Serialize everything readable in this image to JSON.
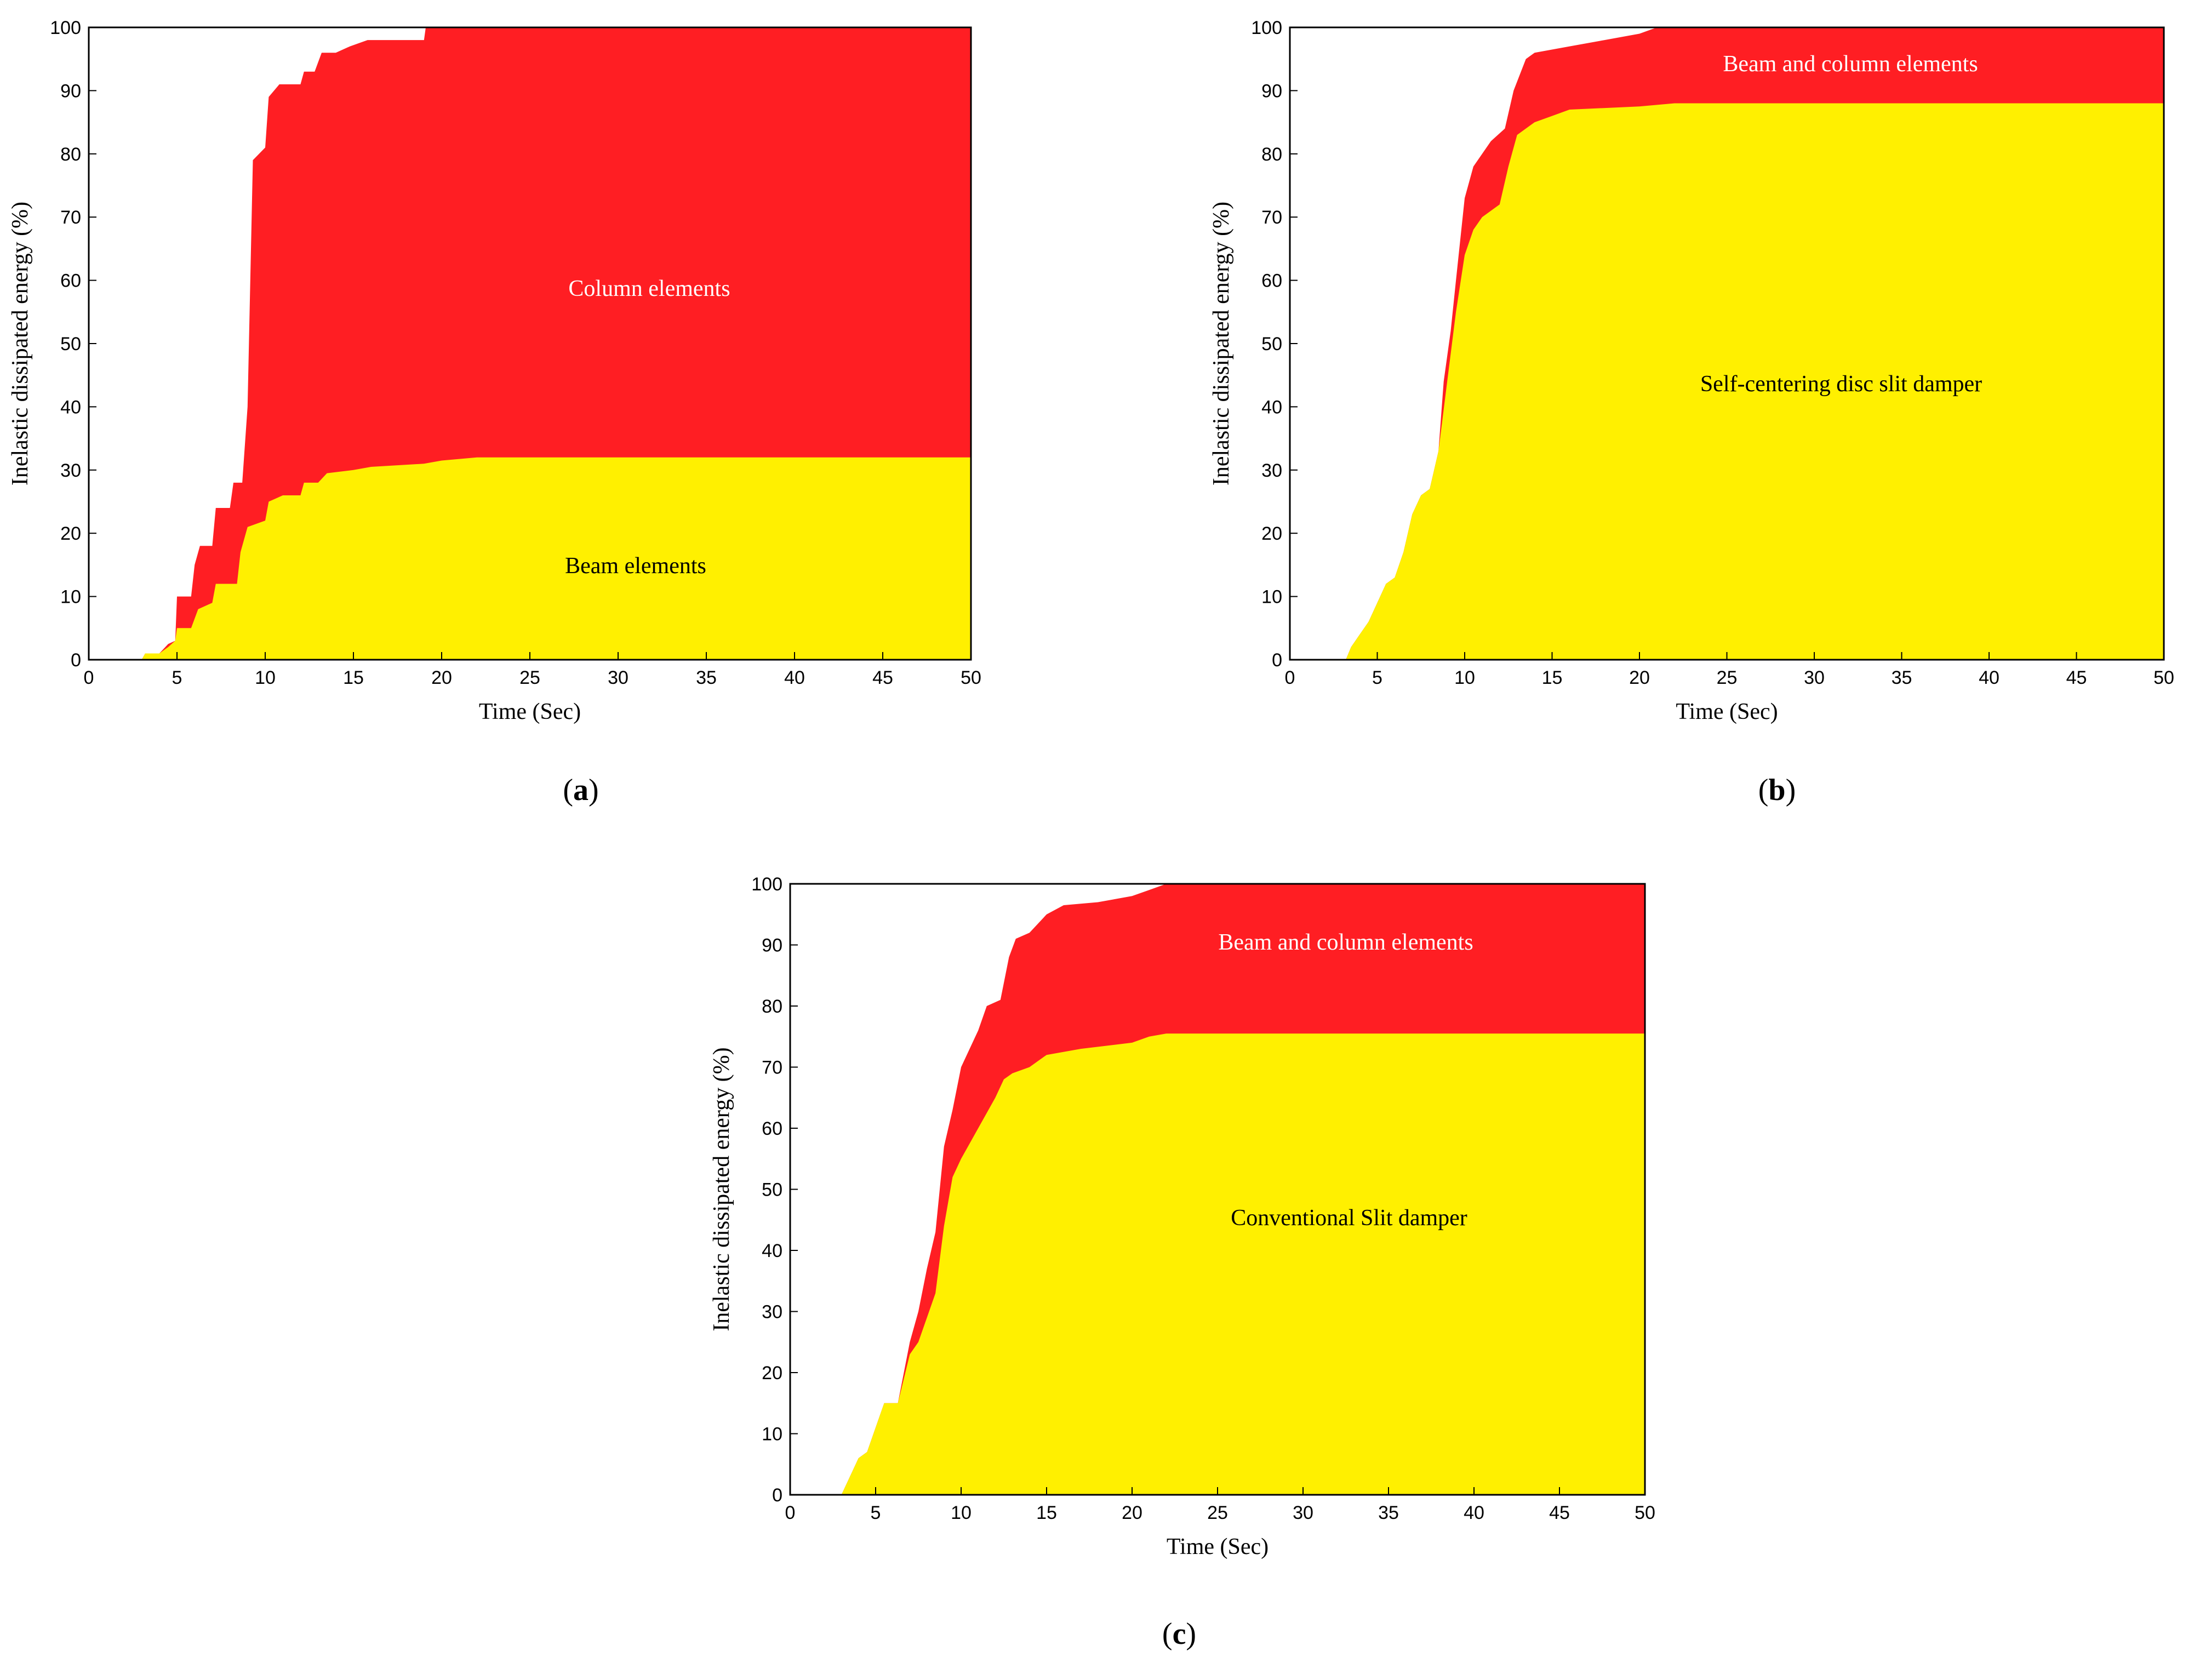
{
  "colors": {
    "red": "#ff1e23",
    "yellow": "#fff000",
    "axis": "#000000",
    "background": "#ffffff"
  },
  "chart_data": [
    {
      "panel": "(a)",
      "type": "area",
      "stacked": true,
      "xlabel": "Time (Sec)",
      "ylabel": "Inelastic dissipated energy (%)",
      "xlim": [
        0,
        50
      ],
      "ylim": [
        0,
        100
      ],
      "xticks": [
        0,
        5,
        10,
        15,
        20,
        25,
        30,
        35,
        40,
        45,
        50
      ],
      "yticks": [
        0,
        10,
        20,
        30,
        40,
        50,
        60,
        70,
        80,
        90,
        100
      ],
      "grid": false,
      "series": [
        {
          "name": "Beam elements",
          "color": "#fff000",
          "points": [
            [
              0,
              0
            ],
            [
              3,
              0
            ],
            [
              3.2,
              1
            ],
            [
              4,
              1
            ],
            [
              4.5,
              2
            ],
            [
              4.9,
              3
            ],
            [
              5,
              5
            ],
            [
              5.8,
              5
            ],
            [
              6.2,
              8
            ],
            [
              7,
              9
            ],
            [
              7.2,
              12
            ],
            [
              8.4,
              12
            ],
            [
              8.6,
              17
            ],
            [
              9,
              21
            ],
            [
              10,
              22
            ],
            [
              10.2,
              25
            ],
            [
              11,
              26
            ],
            [
              12,
              26
            ],
            [
              12.2,
              28
            ],
            [
              13,
              28
            ],
            [
              13.5,
              29.5
            ],
            [
              15,
              30
            ],
            [
              16,
              30.5
            ],
            [
              19,
              31
            ],
            [
              20,
              31.5
            ],
            [
              22,
              32
            ],
            [
              50,
              32
            ]
          ]
        },
        {
          "name": "Column elements",
          "color": "#ff1e23",
          "points": [
            [
              0,
              0
            ],
            [
              3,
              0
            ],
            [
              3.2,
              1
            ],
            [
              4,
              1
            ],
            [
              4.5,
              2.5
            ],
            [
              4.9,
              3
            ],
            [
              5,
              10
            ],
            [
              5.8,
              10
            ],
            [
              6,
              15
            ],
            [
              6.3,
              18
            ],
            [
              7,
              18
            ],
            [
              7.2,
              24
            ],
            [
              8,
              24
            ],
            [
              8.2,
              28
            ],
            [
              8.7,
              28
            ],
            [
              9,
              40
            ],
            [
              9.3,
              79
            ],
            [
              10,
              81
            ],
            [
              10.2,
              89
            ],
            [
              10.8,
              91
            ],
            [
              12,
              91
            ],
            [
              12.2,
              93
            ],
            [
              12.8,
              93
            ],
            [
              13.2,
              96
            ],
            [
              14,
              96
            ],
            [
              14.8,
              97
            ],
            [
              15.8,
              98
            ],
            [
              19,
              98
            ],
            [
              19.1,
              100
            ],
            [
              50,
              100
            ]
          ]
        }
      ]
    },
    {
      "panel": "(b)",
      "type": "area",
      "stacked": true,
      "xlabel": "Time (Sec)",
      "ylabel": "Inelastic dissipated energy (%)",
      "xlim": [
        0,
        50
      ],
      "ylim": [
        0,
        100
      ],
      "xticks": [
        0,
        5,
        10,
        15,
        20,
        25,
        30,
        35,
        40,
        45,
        50
      ],
      "yticks": [
        0,
        10,
        20,
        30,
        40,
        50,
        60,
        70,
        80,
        90,
        100
      ],
      "grid": false,
      "series": [
        {
          "name": "Self-centering disc slit damper",
          "color": "#fff000",
          "points": [
            [
              0,
              0
            ],
            [
              3.2,
              0
            ],
            [
              3.5,
              2
            ],
            [
              4,
              4
            ],
            [
              4.5,
              6
            ],
            [
              5,
              9
            ],
            [
              5.5,
              12
            ],
            [
              6,
              13
            ],
            [
              6.5,
              17
            ],
            [
              7,
              23
            ],
            [
              7.5,
              26
            ],
            [
              8,
              27
            ],
            [
              8.5,
              33
            ],
            [
              9,
              44
            ],
            [
              9.5,
              55
            ],
            [
              10,
              64
            ],
            [
              10.5,
              68
            ],
            [
              11,
              70
            ],
            [
              12,
              72
            ],
            [
              12.5,
              78
            ],
            [
              13,
              83
            ],
            [
              14,
              85
            ],
            [
              15,
              86
            ],
            [
              16,
              87
            ],
            [
              20,
              87.5
            ],
            [
              22,
              88
            ],
            [
              50,
              88
            ]
          ]
        },
        {
          "name": "Beam and column elements",
          "color": "#ff1e23",
          "points": [
            [
              0,
              0
            ],
            [
              3.2,
              0
            ],
            [
              3.5,
              2
            ],
            [
              4,
              4
            ],
            [
              4.5,
              6
            ],
            [
              5,
              9
            ],
            [
              5.5,
              12
            ],
            [
              6,
              13
            ],
            [
              6.5,
              17
            ],
            [
              7,
              23
            ],
            [
              7.5,
              26
            ],
            [
              8,
              27
            ],
            [
              8.5,
              33
            ],
            [
              8.8,
              44
            ],
            [
              9.2,
              52
            ],
            [
              9.5,
              60
            ],
            [
              10,
              73
            ],
            [
              10.5,
              78
            ],
            [
              11,
              80
            ],
            [
              11.5,
              82
            ],
            [
              12.3,
              84
            ],
            [
              12.8,
              90
            ],
            [
              13.5,
              95
            ],
            [
              14,
              96
            ],
            [
              16,
              97
            ],
            [
              18,
              98
            ],
            [
              20,
              99
            ],
            [
              21,
              100
            ],
            [
              50,
              100
            ]
          ]
        }
      ]
    },
    {
      "panel": "(c)",
      "type": "area",
      "stacked": true,
      "xlabel": "Time (Sec)",
      "ylabel": "Inelastic dissipated energy (%)",
      "xlim": [
        0,
        50
      ],
      "ylim": [
        0,
        100
      ],
      "xticks": [
        0,
        5,
        10,
        15,
        20,
        25,
        30,
        35,
        40,
        45,
        50
      ],
      "yticks": [
        0,
        10,
        20,
        30,
        40,
        50,
        60,
        70,
        80,
        90,
        100
      ],
      "grid": false,
      "series": [
        {
          "name": "Conventional Slit damper",
          "color": "#fff000",
          "points": [
            [
              0,
              0
            ],
            [
              3,
              0
            ],
            [
              3.5,
              3
            ],
            [
              4,
              6
            ],
            [
              4.5,
              7
            ],
            [
              5,
              11
            ],
            [
              5.5,
              15
            ],
            [
              6.3,
              15
            ],
            [
              7,
              23
            ],
            [
              7.5,
              25
            ],
            [
              8,
              29
            ],
            [
              8.5,
              33
            ],
            [
              9,
              44
            ],
            [
              9.5,
              52
            ],
            [
              10,
              55
            ],
            [
              11,
              60
            ],
            [
              12,
              65
            ],
            [
              12.5,
              68
            ],
            [
              13,
              69
            ],
            [
              14,
              70
            ],
            [
              15,
              72
            ],
            [
              17,
              73
            ],
            [
              20,
              74
            ],
            [
              21,
              75
            ],
            [
              22,
              75.5
            ],
            [
              50,
              75.5
            ]
          ]
        },
        {
          "name": "Beam and column elements",
          "color": "#ff1e23",
          "points": [
            [
              0,
              0
            ],
            [
              3,
              0
            ],
            [
              3.5,
              3
            ],
            [
              4,
              6
            ],
            [
              4.5,
              7
            ],
            [
              5,
              11
            ],
            [
              5.5,
              15
            ],
            [
              6.3,
              15
            ],
            [
              7,
              25
            ],
            [
              7.5,
              30
            ],
            [
              8,
              37
            ],
            [
              8.5,
              43
            ],
            [
              9,
              57
            ],
            [
              9.5,
              63
            ],
            [
              10,
              70
            ],
            [
              11,
              76
            ],
            [
              11.5,
              80
            ],
            [
              12.3,
              81
            ],
            [
              12.8,
              88
            ],
            [
              13.2,
              91
            ],
            [
              14,
              92
            ],
            [
              15,
              95
            ],
            [
              16,
              96.5
            ],
            [
              18,
              97
            ],
            [
              20,
              98
            ],
            [
              21,
              99
            ],
            [
              22,
              100
            ],
            [
              50,
              100
            ]
          ]
        }
      ]
    }
  ]
}
